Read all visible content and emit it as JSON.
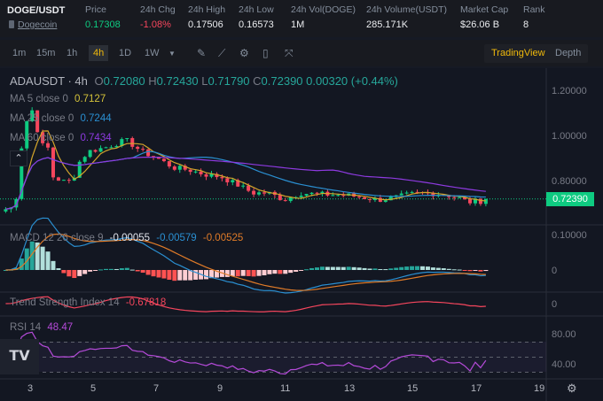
{
  "header": {
    "pair": "DOGE/USDT",
    "coin": "Dogecoin",
    "stats": [
      {
        "label": "Price",
        "value": "0.17308",
        "color": "#0ecb81"
      },
      {
        "label": "24h Chg",
        "value": "-1.08%",
        "color": "#f6465d"
      },
      {
        "label": "24h High",
        "value": "0.17506"
      },
      {
        "label": "24h Low",
        "value": "0.16573"
      },
      {
        "label": "24h Vol(DOGE)",
        "value": "1M"
      },
      {
        "label": "24h Volume(USDT)",
        "value": "285.171K"
      },
      {
        "label": "Market Cap",
        "value": "$26.06 B"
      },
      {
        "label": "Rank",
        "value": "8"
      }
    ]
  },
  "toolbar": {
    "intervals": [
      "1m",
      "15m",
      "1h",
      "4h",
      "1D",
      "1W"
    ],
    "active": "4h",
    "icons": [
      "interval-dropdown-icon",
      "draw-icon",
      "indicator-icon",
      "settings-icon",
      "save-icon",
      "fullscreen-icon"
    ],
    "views": [
      "TradingView",
      "Depth"
    ],
    "active_view": "TradingView"
  },
  "legend": {
    "symbol": "ADAUSDT · 4h",
    "o": "O",
    "ov": "0.72080",
    "h": "H",
    "hv": "0.72430",
    "l": "L",
    "lv": "0.71790",
    "c": "C",
    "cv": "0.72390",
    "chg": "0.00320 (+0.44%)",
    "ma": [
      {
        "label": "MA 5 close 0",
        "value": "0.7127",
        "color": "#d4c23a"
      },
      {
        "label": "MA 25 close 0",
        "value": "0.7244",
        "color": "#2a8fd1"
      },
      {
        "label": "MA 60 close 0",
        "value": "0.7434",
        "color": "#8e3ae0"
      }
    ],
    "macd": {
      "label": "MACD 12 26 close 9",
      "v1": "-0.00055",
      "v2": "-0.00579",
      "v3": "-0.00525"
    },
    "tsi": {
      "label": "Trend Strength Index 14",
      "value": "-0.67818"
    },
    "rsi": {
      "label": "RSI 14",
      "value": "48.47"
    }
  },
  "price_axis": [
    "1.20000",
    "1.00000",
    "0.80000"
  ],
  "last_price": "0.72390",
  "macd_axis": [
    "0.10000",
    "0"
  ],
  "tsi_axis": [
    "0"
  ],
  "rsi_axis": [
    "80.00",
    "40.00"
  ],
  "x_axis": [
    "3",
    "5",
    "7",
    "9",
    "11",
    "13",
    "15",
    "17",
    "19"
  ],
  "colors": {
    "up": "#0ecb81",
    "down": "#f6465d",
    "accent": "#f0b90b"
  },
  "chart_data": {
    "type": "candlestick",
    "x_unit": "day",
    "keypoints": [
      [
        2.2,
        0.68
      ],
      [
        2.5,
        0.69
      ],
      [
        2.7,
        0.95
      ],
      [
        2.95,
        1.12
      ],
      [
        3.1,
        1.1
      ],
      [
        3.3,
        0.95
      ],
      [
        3.5,
        0.97
      ],
      [
        3.7,
        0.82
      ],
      [
        4.0,
        0.8
      ],
      [
        4.3,
        0.8
      ],
      [
        4.5,
        0.88
      ],
      [
        4.8,
        0.93
      ],
      [
        5.4,
        0.95
      ],
      [
        6.0,
        0.98
      ],
      [
        6.5,
        0.93
      ],
      [
        7.0,
        0.9
      ],
      [
        7.5,
        0.86
      ],
      [
        8.0,
        0.85
      ],
      [
        8.5,
        0.83
      ],
      [
        9.0,
        0.82
      ],
      [
        9.6,
        0.78
      ],
      [
        10.0,
        0.75
      ],
      [
        10.5,
        0.75
      ],
      [
        11.0,
        0.72
      ],
      [
        11.5,
        0.75
      ],
      [
        12.0,
        0.745
      ],
      [
        13.0,
        0.74
      ],
      [
        13.5,
        0.73
      ],
      [
        14.0,
        0.72
      ],
      [
        14.5,
        0.73
      ],
      [
        15.0,
        0.745
      ],
      [
        15.5,
        0.75
      ],
      [
        16.0,
        0.745
      ],
      [
        16.5,
        0.73
      ],
      [
        16.8,
        0.71
      ],
      [
        17.2,
        0.715
      ],
      [
        17.5,
        0.7239
      ]
    ]
  }
}
